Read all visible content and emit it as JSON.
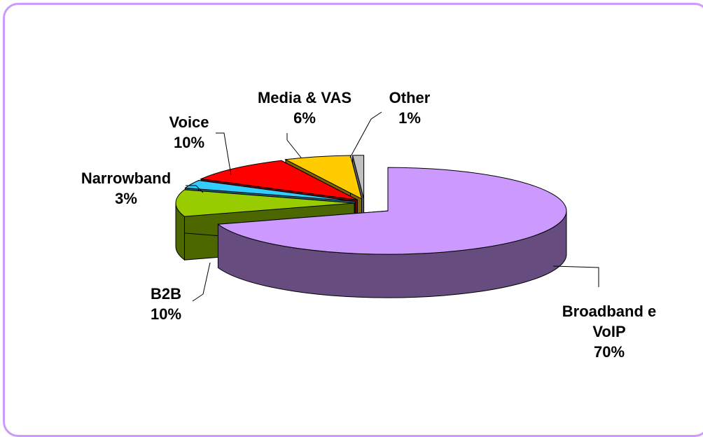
{
  "chart_data": {
    "type": "pie",
    "categories": [
      "Broadband e VoIP",
      "B2B",
      "Narrowband",
      "Voice",
      "Media & VAS",
      "Other"
    ],
    "values": [
      70,
      10,
      3,
      10,
      6,
      1
    ],
    "value_labels": [
      "70%",
      "10%",
      "3%",
      "10%",
      "6%",
      "1%"
    ],
    "colors": [
      "#cc99ff",
      "#99cc00",
      "#33ccff",
      "#ff0000",
      "#ffcc00",
      "#c0c0c0"
    ]
  }
}
